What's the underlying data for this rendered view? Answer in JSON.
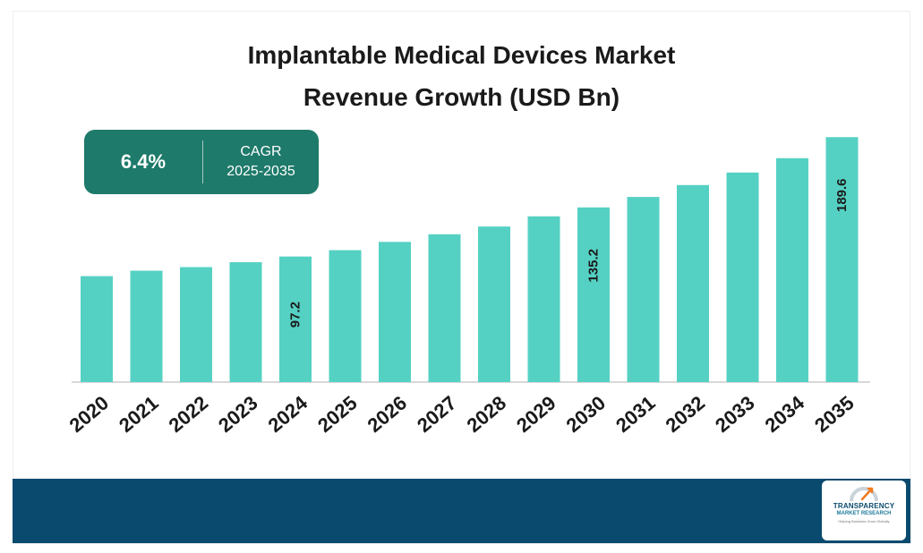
{
  "chart_data": {
    "type": "bar",
    "title": "Implantable Medical Devices Market Revenue Growth (USD Bn)",
    "title_lines": [
      "Implantable Medical Devices Market",
      "Revenue Growth (USD Bn)"
    ],
    "categories": [
      "2020",
      "2021",
      "2022",
      "2023",
      "2024",
      "2025",
      "2026",
      "2027",
      "2028",
      "2029",
      "2030",
      "2031",
      "2032",
      "2033",
      "2034",
      "2035"
    ],
    "values": [
      82.0,
      86.2,
      89.0,
      92.8,
      97.2,
      102.1,
      108.5,
      114.4,
      120.4,
      128.3,
      135.2,
      143.3,
      152.5,
      162.2,
      173.3,
      189.6
    ],
    "data_labels": {
      "4": "97.2",
      "10": "135.2",
      "15": "189.6"
    },
    "ylim": [
      0,
      196
    ],
    "xlabel": "",
    "ylabel": "",
    "grid": false,
    "bar_color": "#55d1c3",
    "axis_color": "#cccccc"
  },
  "cagr": {
    "value": "6.4%",
    "label_line1": "CAGR",
    "label_line2": "2025-2035",
    "box_color": "#1e7a6a"
  },
  "footer": {
    "band_color": "#0a4a6e",
    "logo": {
      "line1": "TRANSPARENCY",
      "line2": "MARKET RESEARCH",
      "line3": "Helping Business Grow Globally"
    }
  }
}
